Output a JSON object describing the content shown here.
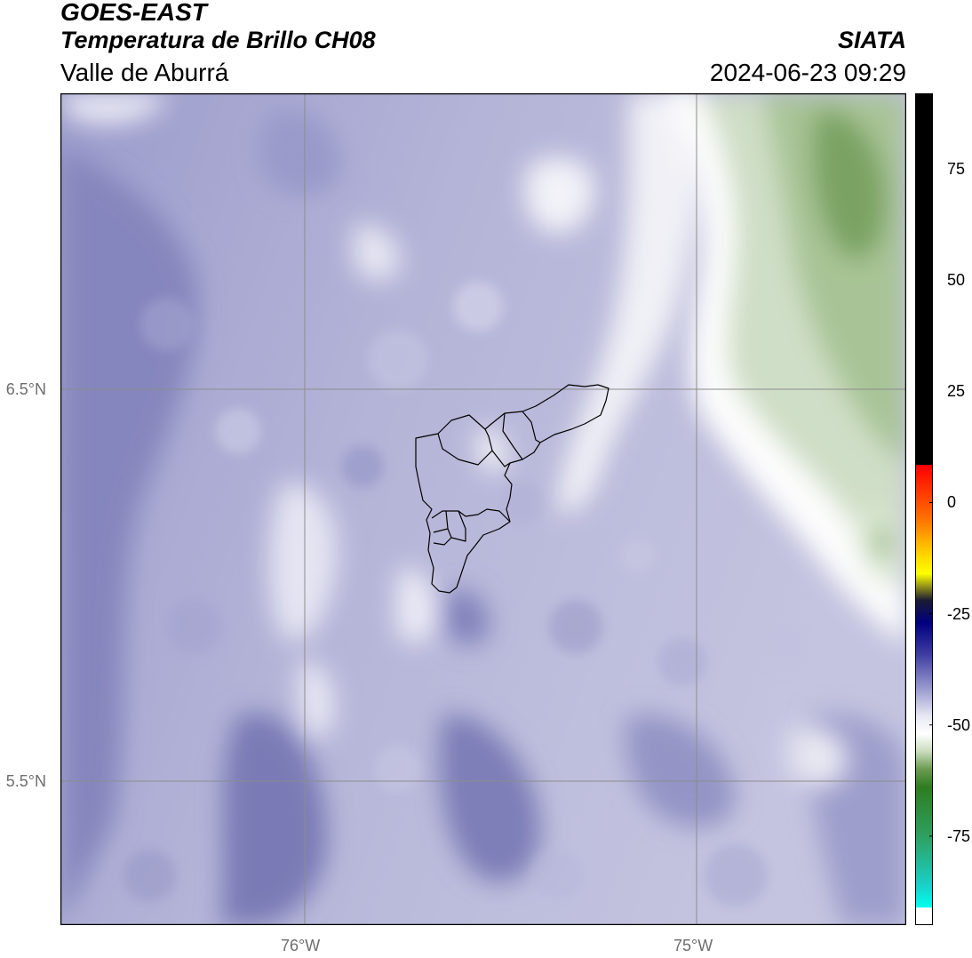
{
  "header": {
    "title": "GOES-EAST",
    "subtitle": "Temperatura de Brillo CH08",
    "region": "Valle de Aburrá",
    "organization": "SIATA",
    "datetime": "2024-06-23 09:29"
  },
  "map": {
    "lon_range": [
      -76.62,
      -74.54
    ],
    "lat_range": [
      5.13,
      7.25
    ],
    "lat_ticks": [
      {
        "value": 6.5,
        "label": "6.5°N"
      },
      {
        "value": 5.5,
        "label": "5.5°N"
      }
    ],
    "lon_ticks": [
      {
        "value": -76.0,
        "label": "76°W"
      },
      {
        "value": -75.0,
        "label": "75°W"
      }
    ],
    "gridlines": true,
    "overlay": "Valle de Aburrá municipal boundaries"
  },
  "colorbar": {
    "range": [
      -95,
      92
    ],
    "ticks": [
      {
        "value": 75,
        "label": "75"
      },
      {
        "value": 50,
        "label": "50"
      },
      {
        "value": 25,
        "label": "25"
      },
      {
        "value": 0,
        "label": "0"
      },
      {
        "value": -25,
        "label": "-25"
      },
      {
        "value": -50,
        "label": "-50"
      },
      {
        "value": -75,
        "label": "-75"
      }
    ],
    "stops": [
      {
        "v": 92,
        "c": "#000000"
      },
      {
        "v": 8.5,
        "c": "#000000"
      },
      {
        "v": 8.4,
        "c": "#ff0000"
      },
      {
        "v": -3,
        "c": "#ff6a00"
      },
      {
        "v": -12,
        "c": "#ffd800"
      },
      {
        "v": -16,
        "c": "#ffff00"
      },
      {
        "v": -22,
        "c": "#1a1a33"
      },
      {
        "v": -27,
        "c": "#000080"
      },
      {
        "v": -34,
        "c": "#3c3ca0"
      },
      {
        "v": -42,
        "c": "#9c9cd0"
      },
      {
        "v": -48,
        "c": "#e8e8f4"
      },
      {
        "v": -52,
        "c": "#ffffff"
      },
      {
        "v": -56,
        "c": "#c8dcbc"
      },
      {
        "v": -60,
        "c": "#6a9a50"
      },
      {
        "v": -64,
        "c": "#2e7d20"
      },
      {
        "v": -75,
        "c": "#2ea060"
      },
      {
        "v": -86,
        "c": "#1ad0c8"
      },
      {
        "v": -91,
        "c": "#00ffee"
      },
      {
        "v": -91.1,
        "c": "#ffffff"
      },
      {
        "v": -95,
        "c": "#ffffff"
      }
    ]
  },
  "colors": {
    "cold_cloud": "#7c7cb8",
    "mid": "#b8b8dc",
    "warm_white": "#f4f4f8",
    "dry_green": "#8cb076",
    "boundary": "#000000",
    "grid": "#8c8c8c"
  }
}
